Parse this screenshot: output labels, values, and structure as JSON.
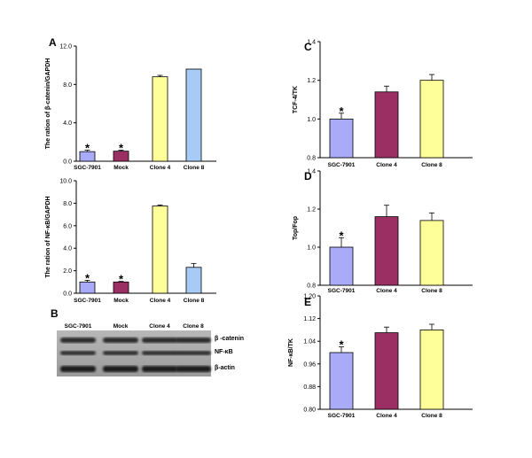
{
  "chart_data": [
    {
      "panel": "A",
      "type": "bar",
      "categories": [
        "SGC-7901",
        "Mock",
        "Clone 4",
        "Clone 8"
      ],
      "values": [
        1.0,
        1.05,
        8.8,
        9.6
      ],
      "errors": [
        0.15,
        0.1,
        0.15,
        0.0
      ],
      "significant": [
        true,
        true,
        false,
        false
      ],
      "ylabel": "The ration of β-catenin/GAPDH",
      "ylim": [
        0,
        12.0
      ],
      "yticks": [
        "0.0",
        "4.0",
        "8.0",
        "12.0"
      ],
      "colors": [
        "#a9aaf8",
        "#9b2f63",
        "#ffff99",
        "#a6cbf7"
      ]
    },
    {
      "panel": "A2",
      "type": "bar",
      "categories": [
        "SGC-7901",
        "Mock",
        "Clone 4",
        "Clone 8"
      ],
      "values": [
        1.0,
        1.0,
        7.75,
        2.3
      ],
      "errors": [
        0.15,
        0.05,
        0.1,
        0.35
      ],
      "significant": [
        true,
        true,
        false,
        false
      ],
      "ylabel": "The ration of NF-κB/GAPDH",
      "ylim": [
        0,
        10.0
      ],
      "yticks": [
        "0.0",
        "2.0",
        "4.0",
        "6.0",
        "8.0",
        "10.0"
      ],
      "colors": [
        "#a9aaf8",
        "#9b2f63",
        "#ffff99",
        "#a6cbf7"
      ]
    },
    {
      "panel": "C",
      "type": "bar",
      "categories": [
        "SGC-7901",
        "Clone 4",
        "Clone 8"
      ],
      "values": [
        1.0,
        1.14,
        1.2
      ],
      "errors": [
        0.03,
        0.03,
        0.03
      ],
      "significant": [
        true,
        false,
        false
      ],
      "ylabel": "TCF-4/TK",
      "ylim": [
        0.8,
        1.4
      ],
      "yticks": [
        "0.8",
        "1.0",
        "1.2",
        "1.4"
      ],
      "colors": [
        "#a9aaf8",
        "#9b2f63",
        "#ffff99"
      ]
    },
    {
      "panel": "D",
      "type": "bar",
      "categories": [
        "SGC-7901",
        "Clone 4",
        "Clone 8"
      ],
      "values": [
        1.0,
        1.16,
        1.14
      ],
      "errors": [
        0.05,
        0.06,
        0.04
      ],
      "significant": [
        true,
        false,
        false
      ],
      "ylabel": "Top/Fop",
      "ylim": [
        0.8,
        1.4
      ],
      "yticks": [
        "0.8",
        "1.0",
        "1.2",
        "1.4"
      ],
      "colors": [
        "#a9aaf8",
        "#9b2f63",
        "#ffff99"
      ]
    },
    {
      "panel": "E",
      "type": "bar",
      "categories": [
        "SGC-7901",
        "Clone 4",
        "Clone 8"
      ],
      "values": [
        1.0,
        1.07,
        1.08
      ],
      "errors": [
        0.02,
        0.02,
        0.02
      ],
      "significant": [
        true,
        false,
        false
      ],
      "ylabel": "NF-κB/TK",
      "ylim": [
        0.8,
        1.2
      ],
      "yticks": [
        "0.80",
        "0.88",
        "0.96",
        "1.04",
        "1.12",
        "1.20"
      ],
      "colors": [
        "#a9aaf8",
        "#9b2f63",
        "#ffff99"
      ]
    }
  ],
  "panel_b": {
    "letter": "B",
    "lanes": [
      "SGC-7901",
      "Mock",
      "Clone 4",
      "Clone 8"
    ],
    "proteins": [
      "β -catenin",
      "NF-κB",
      "β-actin"
    ]
  },
  "star_symbol": "*"
}
